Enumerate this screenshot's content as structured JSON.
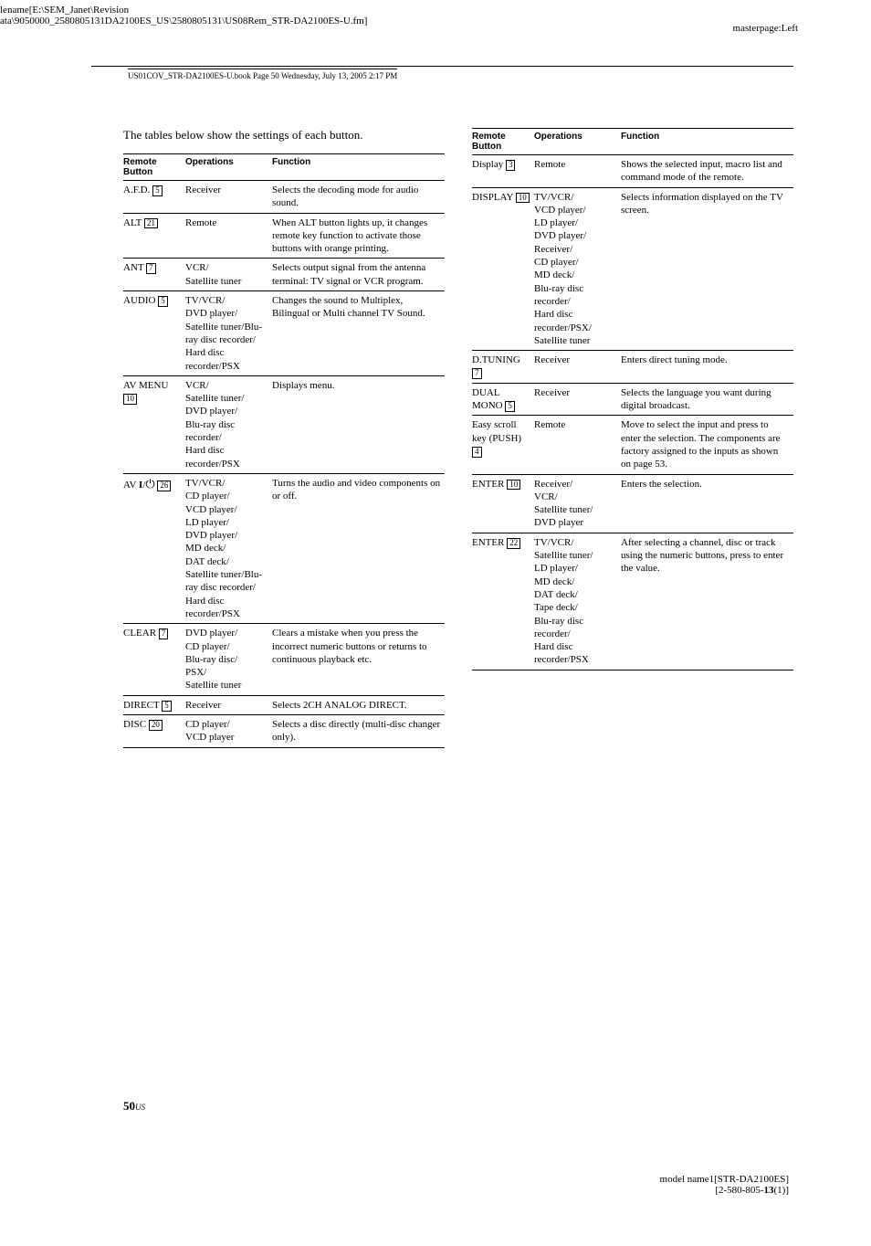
{
  "header": {
    "line1": "lename[E:\\SEM_Janet\\Revision",
    "line2": "ata\\9050000_2580805131DA2100ES_US\\2580805131\\US08Rem_STR-DA2100ES-U.fm]",
    "masterpage": "masterpage:Left",
    "bookinfo": "US01COV_STR-DA2100ES-U.book  Page 50  Wednesday, July 13, 2005  2:17 PM"
  },
  "intro": "The tables below show the settings of each button.",
  "th": {
    "btn": "Remote Button",
    "op": "Operations",
    "fn": "Function"
  },
  "table1": [
    {
      "btn": "A.F.D.",
      "num": "5",
      "op": "Receiver",
      "fn": "Selects the decoding mode for audio sound."
    },
    {
      "btn": "ALT",
      "num": "21",
      "op": "Remote",
      "fn": "When ALT button lights up, it changes remote key function to activate those buttons with orange printing."
    },
    {
      "btn": "ANT",
      "num": "7",
      "op": "VCR/\nSatellite tuner",
      "fn": "Selects output signal from the antenna terminal: TV signal or VCR program."
    },
    {
      "btn": "AUDIO",
      "num": "5",
      "op": "TV/VCR/\nDVD player/\nSatellite tuner/Blu-ray disc recorder/\nHard disc recorder/PSX",
      "fn": "Changes the sound to Multiplex, Bilingual or Multi channel TV Sound."
    },
    {
      "btn": "AV MENU",
      "num": "10",
      "op": "VCR/\nSatellite tuner/\nDVD player/\nBlu-ray disc recorder/\nHard disc recorder/PSX",
      "fn": "Displays menu."
    },
    {
      "btn": "AV ",
      "btn2": "I/⏻",
      "num": "26",
      "op": "TV/VCR/\nCD player/\nVCD player/\nLD player/\nDVD player/\nMD deck/\nDAT deck/\nSatellite tuner/Blu-ray disc recorder/\nHard disc recorder/PSX",
      "fn": "Turns the audio and video components on or off."
    },
    {
      "btn": "CLEAR",
      "num": "7",
      "op": "DVD player/\nCD player/\nBlu-ray disc/\nPSX/\nSatellite tuner",
      "fn": "Clears a mistake when you press the incorrect numeric buttons or returns to continuous playback etc."
    },
    {
      "btn": "DIRECT",
      "num": "5",
      "op": "Receiver",
      "fn": "Selects 2CH ANALOG DIRECT."
    },
    {
      "btn": "DISC",
      "num": "20",
      "op": "CD player/\nVCD player",
      "fn": "Selects a disc directly (multi-disc changer only)."
    }
  ],
  "table2": [
    {
      "btn": "Display",
      "num": "3",
      "op": "Remote",
      "fn": "Shows the selected input, macro list and command mode of the remote."
    },
    {
      "btn": "DISPLAY",
      "num": "10",
      "op": "TV/VCR/\nVCD player/\nLD player/\nDVD player/\nReceiver/\nCD player/\nMD deck/\nBlu-ray disc recorder/\nHard disc recorder/PSX/\nSatellite tuner",
      "fn": "Selects information displayed on the TV screen."
    },
    {
      "btn": "D.TUNING",
      "num": "7",
      "op": "Receiver",
      "fn": "Enters direct tuning mode."
    },
    {
      "btn": "DUAL MONO",
      "num": "5",
      "op": "Receiver",
      "fn": "Selects the language you want during digital broadcast."
    },
    {
      "btn": "Easy scroll key (PUSH)",
      "num": "4",
      "op": "Remote",
      "fn": "Move to select the input and press to enter the selection. The components are factory assigned to the inputs as shown on page 53."
    },
    {
      "btn": "ENTER",
      "num": "10",
      "op": "Receiver/\nVCR/\nSatellite tuner/\nDVD player",
      "fn": "Enters the selection."
    },
    {
      "btn": "ENTER",
      "num": "22",
      "op": "TV/VCR/\nSatellite tuner/\nLD player/\nMD deck/\nDAT deck/\nTape deck/\nBlu-ray disc recorder/\nHard disc recorder/PSX",
      "fn": "After selecting a channel, disc or track using the numeric buttons, press to enter the value."
    }
  ],
  "footer": {
    "pagenum": "50",
    "us": "US",
    "model": "model name1[STR-DA2100ES]",
    "partnum": "[2-580-805-13(1)]"
  }
}
